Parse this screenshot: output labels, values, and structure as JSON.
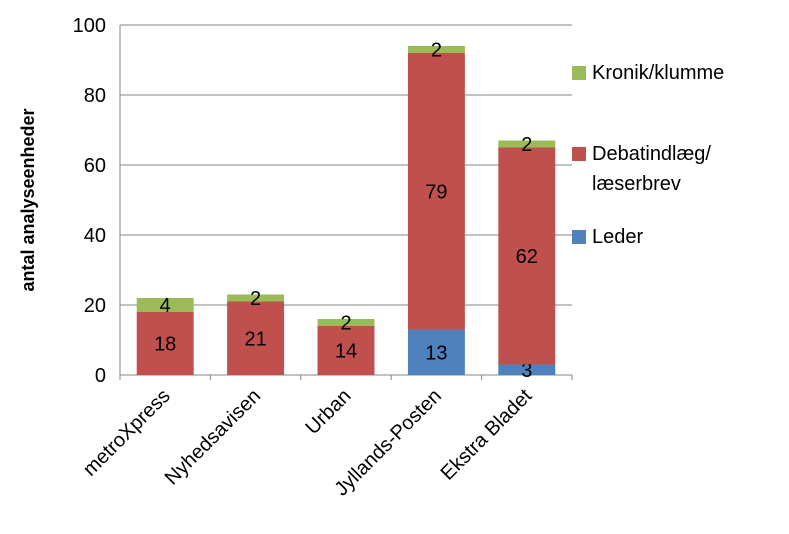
{
  "chart_data": {
    "type": "bar",
    "stacked": true,
    "ylabel": "antal analyseenheder",
    "ylim": [
      0,
      100
    ],
    "yticks": [
      0,
      20,
      40,
      60,
      80,
      100
    ],
    "categories": [
      "metroXpress",
      "Nyhedsavisen",
      "Urban",
      "Jyllands-Posten",
      "Ekstra Bladet"
    ],
    "series": [
      {
        "name": "Leder",
        "color": "#4f81bd",
        "values": [
          0,
          0,
          0,
          13,
          3
        ]
      },
      {
        "name": "Debatindlæg/\nlæserbrev",
        "color": "#c0504d",
        "values": [
          18,
          21,
          14,
          79,
          62
        ]
      },
      {
        "name": "Kronik/klumme",
        "color": "#9bbb59",
        "values": [
          4,
          2,
          2,
          2,
          2
        ]
      }
    ],
    "legend_position": "right",
    "grid": true
  }
}
